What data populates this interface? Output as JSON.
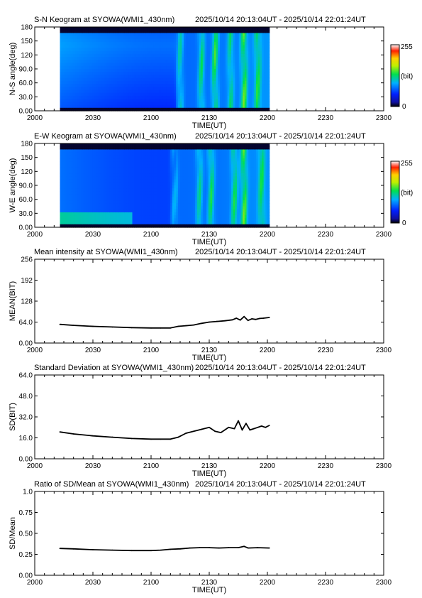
{
  "time_range": "2025/10/14 20:13:04UT - 2025/10/14 22:01:24UT",
  "x_axis": {
    "label": "TIME(UT)",
    "ticks": [
      "2000",
      "2030",
      "2100",
      "2130",
      "2200",
      "2230",
      "2300"
    ]
  },
  "colorbar_labels": {
    "max": "255",
    "unit": "(bit)",
    "min": "0"
  },
  "chart_data": [
    {
      "type": "heatmap",
      "title": "S-N Keogram at SYOWA(WMI1_430nm)",
      "ylabel": "N-S angle(deg)",
      "yticks": [
        "0.00",
        "30.0",
        "60.0",
        "90.0",
        "120",
        "150",
        "180"
      ],
      "ylim": [
        0,
        180
      ],
      "data_start": "20:13",
      "data_end": "22:01",
      "colorbar": [
        0,
        255
      ],
      "features": [
        {
          "t": "21:15",
          "strength": 0.55
        },
        {
          "t": "21:26",
          "strength": 0.7
        },
        {
          "t": "21:33",
          "strength": 0.85
        },
        {
          "t": "21:41",
          "strength": 0.6
        },
        {
          "t": "21:48",
          "strength": 0.9
        },
        {
          "t": "21:55",
          "strength": 0.7
        }
      ]
    },
    {
      "type": "heatmap",
      "title": "E-W Keogram at SYOWA(WMI1_430nm)",
      "ylabel": "W-E angle(deg)",
      "yticks": [
        "0.00",
        "30.0",
        "60.0",
        "90.0",
        "120",
        "150",
        "180"
      ],
      "ylim": [
        0,
        180
      ],
      "data_start": "20:13",
      "data_end": "22:01",
      "colorbar": [
        0,
        255
      ],
      "features": [
        {
          "t": "21:12",
          "strength": 0.5
        },
        {
          "t": "21:25",
          "strength": 0.6
        },
        {
          "t": "21:31",
          "strength": 0.75
        },
        {
          "t": "21:43",
          "strength": 0.7
        },
        {
          "t": "21:48",
          "strength": 0.9
        },
        {
          "t": "21:57",
          "strength": 0.65
        }
      ]
    },
    {
      "type": "line",
      "title": "Mean intensity at SYOWA(WMI1_430nm)",
      "ylabel": "MEAN(BIT)",
      "yticks": [
        "0.00",
        "64.0",
        "128",
        "192",
        "256"
      ],
      "ylim": [
        0,
        256
      ],
      "x": [
        "20:13",
        "20:20",
        "20:30",
        "20:40",
        "20:50",
        "21:00",
        "21:05",
        "21:10",
        "21:14",
        "21:18",
        "21:22",
        "21:26",
        "21:30",
        "21:34",
        "21:38",
        "21:42",
        "21:44",
        "21:46",
        "21:48",
        "21:50",
        "21:52",
        "21:54",
        "21:56",
        "21:58",
        "22:01"
      ],
      "values": [
        57,
        54,
        51,
        49,
        47,
        46,
        46,
        46,
        51,
        53,
        55,
        60,
        64,
        66,
        68,
        71,
        76,
        70,
        81,
        69,
        74,
        72,
        75,
        76,
        78
      ]
    },
    {
      "type": "line",
      "title": "Standard Deviation at SYOWA(WMI1_430nm)",
      "ylabel": "SD(BIT)",
      "yticks": [
        "0.00",
        "16.0",
        "32.0",
        "48.0",
        "64.0"
      ],
      "ylim": [
        0,
        64
      ],
      "x": [
        "20:13",
        "20:20",
        "20:30",
        "20:40",
        "20:50",
        "21:00",
        "21:05",
        "21:10",
        "21:14",
        "21:18",
        "21:22",
        "21:26",
        "21:30",
        "21:33",
        "21:36",
        "21:40",
        "21:43",
        "21:45",
        "21:47",
        "21:49",
        "21:51",
        "21:53",
        "21:55",
        "21:57",
        "21:59",
        "22:01"
      ],
      "values": [
        20.5,
        19,
        17.5,
        16.5,
        15.5,
        15,
        15,
        15,
        16.5,
        19.5,
        21,
        22.5,
        24,
        21,
        20,
        24,
        23,
        29,
        22,
        27,
        22,
        23,
        24,
        25,
        24,
        25.5
      ]
    },
    {
      "type": "line",
      "title": "Ratio of SD/Mean at SYOWA(WMI1_430nm)",
      "ylabel": "SD/Mean",
      "yticks": [
        "0.00",
        "0.25",
        "0.50",
        "0.75",
        "1.0"
      ],
      "ylim": [
        0,
        1
      ],
      "x": [
        "20:13",
        "20:20",
        "20:30",
        "20:40",
        "20:50",
        "21:00",
        "21:05",
        "21:10",
        "21:15",
        "21:20",
        "21:25",
        "21:30",
        "21:35",
        "21:40",
        "21:45",
        "21:48",
        "21:50",
        "21:55",
        "22:01"
      ],
      "values": [
        0.32,
        0.315,
        0.305,
        0.3,
        0.295,
        0.295,
        0.3,
        0.31,
        0.315,
        0.325,
        0.33,
        0.33,
        0.325,
        0.33,
        0.33,
        0.345,
        0.325,
        0.33,
        0.325
      ]
    }
  ]
}
